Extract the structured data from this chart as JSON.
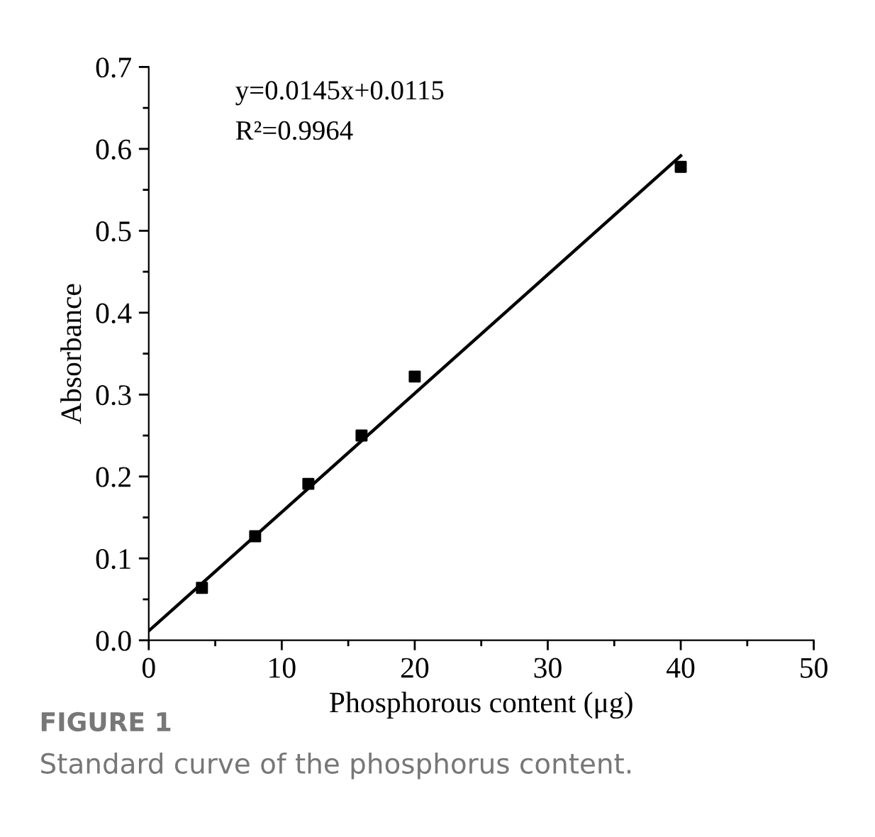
{
  "chart_data": {
    "type": "scatter",
    "xlabel": "Phosphorous content (μg)",
    "ylabel": "Absorbance",
    "series": [
      {
        "color": "#000000",
        "marker": "square",
        "x": [
          4,
          8,
          12,
          16,
          20,
          40
        ],
        "values": [
          0.064,
          0.127,
          0.191,
          0.25,
          0.322,
          0.578
        ]
      },
      {
        "type": "line",
        "color": "#000000",
        "marker": "none",
        "line_style": "solid",
        "x": [
          0,
          40
        ],
        "values": [
          0.0115,
          0.5915
        ]
      }
    ],
    "xlim": [
      0,
      50
    ],
    "ylim": [
      0,
      0.7
    ],
    "xticks": [
      0,
      {
        "value": 5,
        "label": null
      },
      10,
      {
        "value": 15,
        "label": null
      },
      20,
      {
        "value": 25,
        "label": null
      },
      30,
      {
        "value": 35,
        "label": null
      },
      40,
      {
        "value": 45,
        "label": null
      },
      50
    ],
    "yticks": [
      {
        "value": 0,
        "label": "0.0"
      },
      {
        "value": 0.05,
        "label": null
      },
      0.1,
      {
        "value": 0.15,
        "label": null
      },
      0.2,
      {
        "value": 0.25,
        "label": null
      },
      0.3,
      {
        "value": 0.35,
        "label": null
      },
      0.4,
      {
        "value": 0.45,
        "label": null
      },
      0.5,
      {
        "value": 0.55,
        "label": null
      },
      0.6,
      {
        "value": 0.65,
        "label": null
      },
      0.7
    ],
    "grid": false,
    "annotations": [
      "y=0.0145x+0.0115",
      "R²=0.9964",
      "FIGURE 1",
      "Standard curve of the phosphorus content."
    ]
  }
}
